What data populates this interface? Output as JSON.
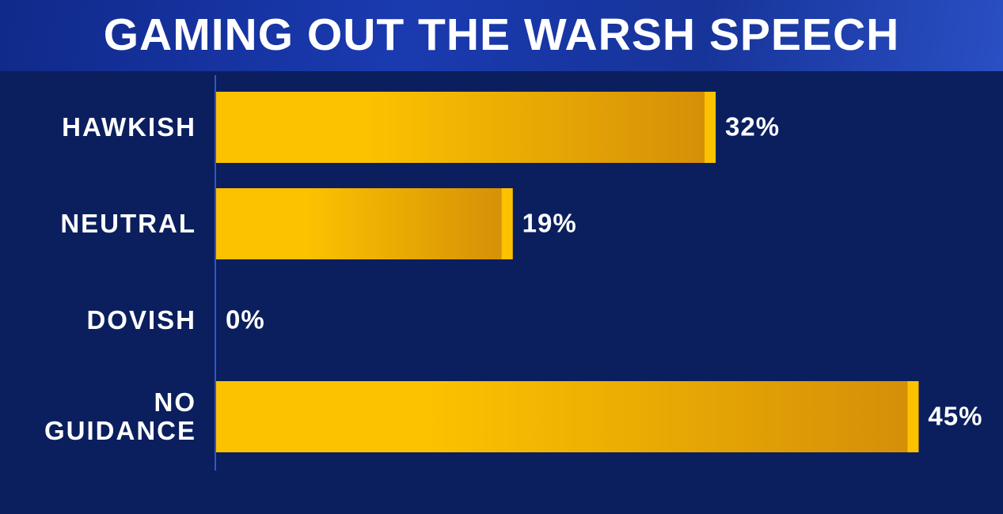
{
  "chart_data": {
    "type": "bar",
    "orientation": "horizontal",
    "title": "GAMING OUT THE WARSH SPEECH",
    "categories": [
      "HAWKISH",
      "NEUTRAL",
      "DOVISH",
      "NO GUIDANCE"
    ],
    "values": [
      32,
      19,
      0,
      45
    ],
    "value_labels": [
      "32%",
      "19%",
      "0%",
      "45%"
    ],
    "color": "#fcc200"
  }
}
